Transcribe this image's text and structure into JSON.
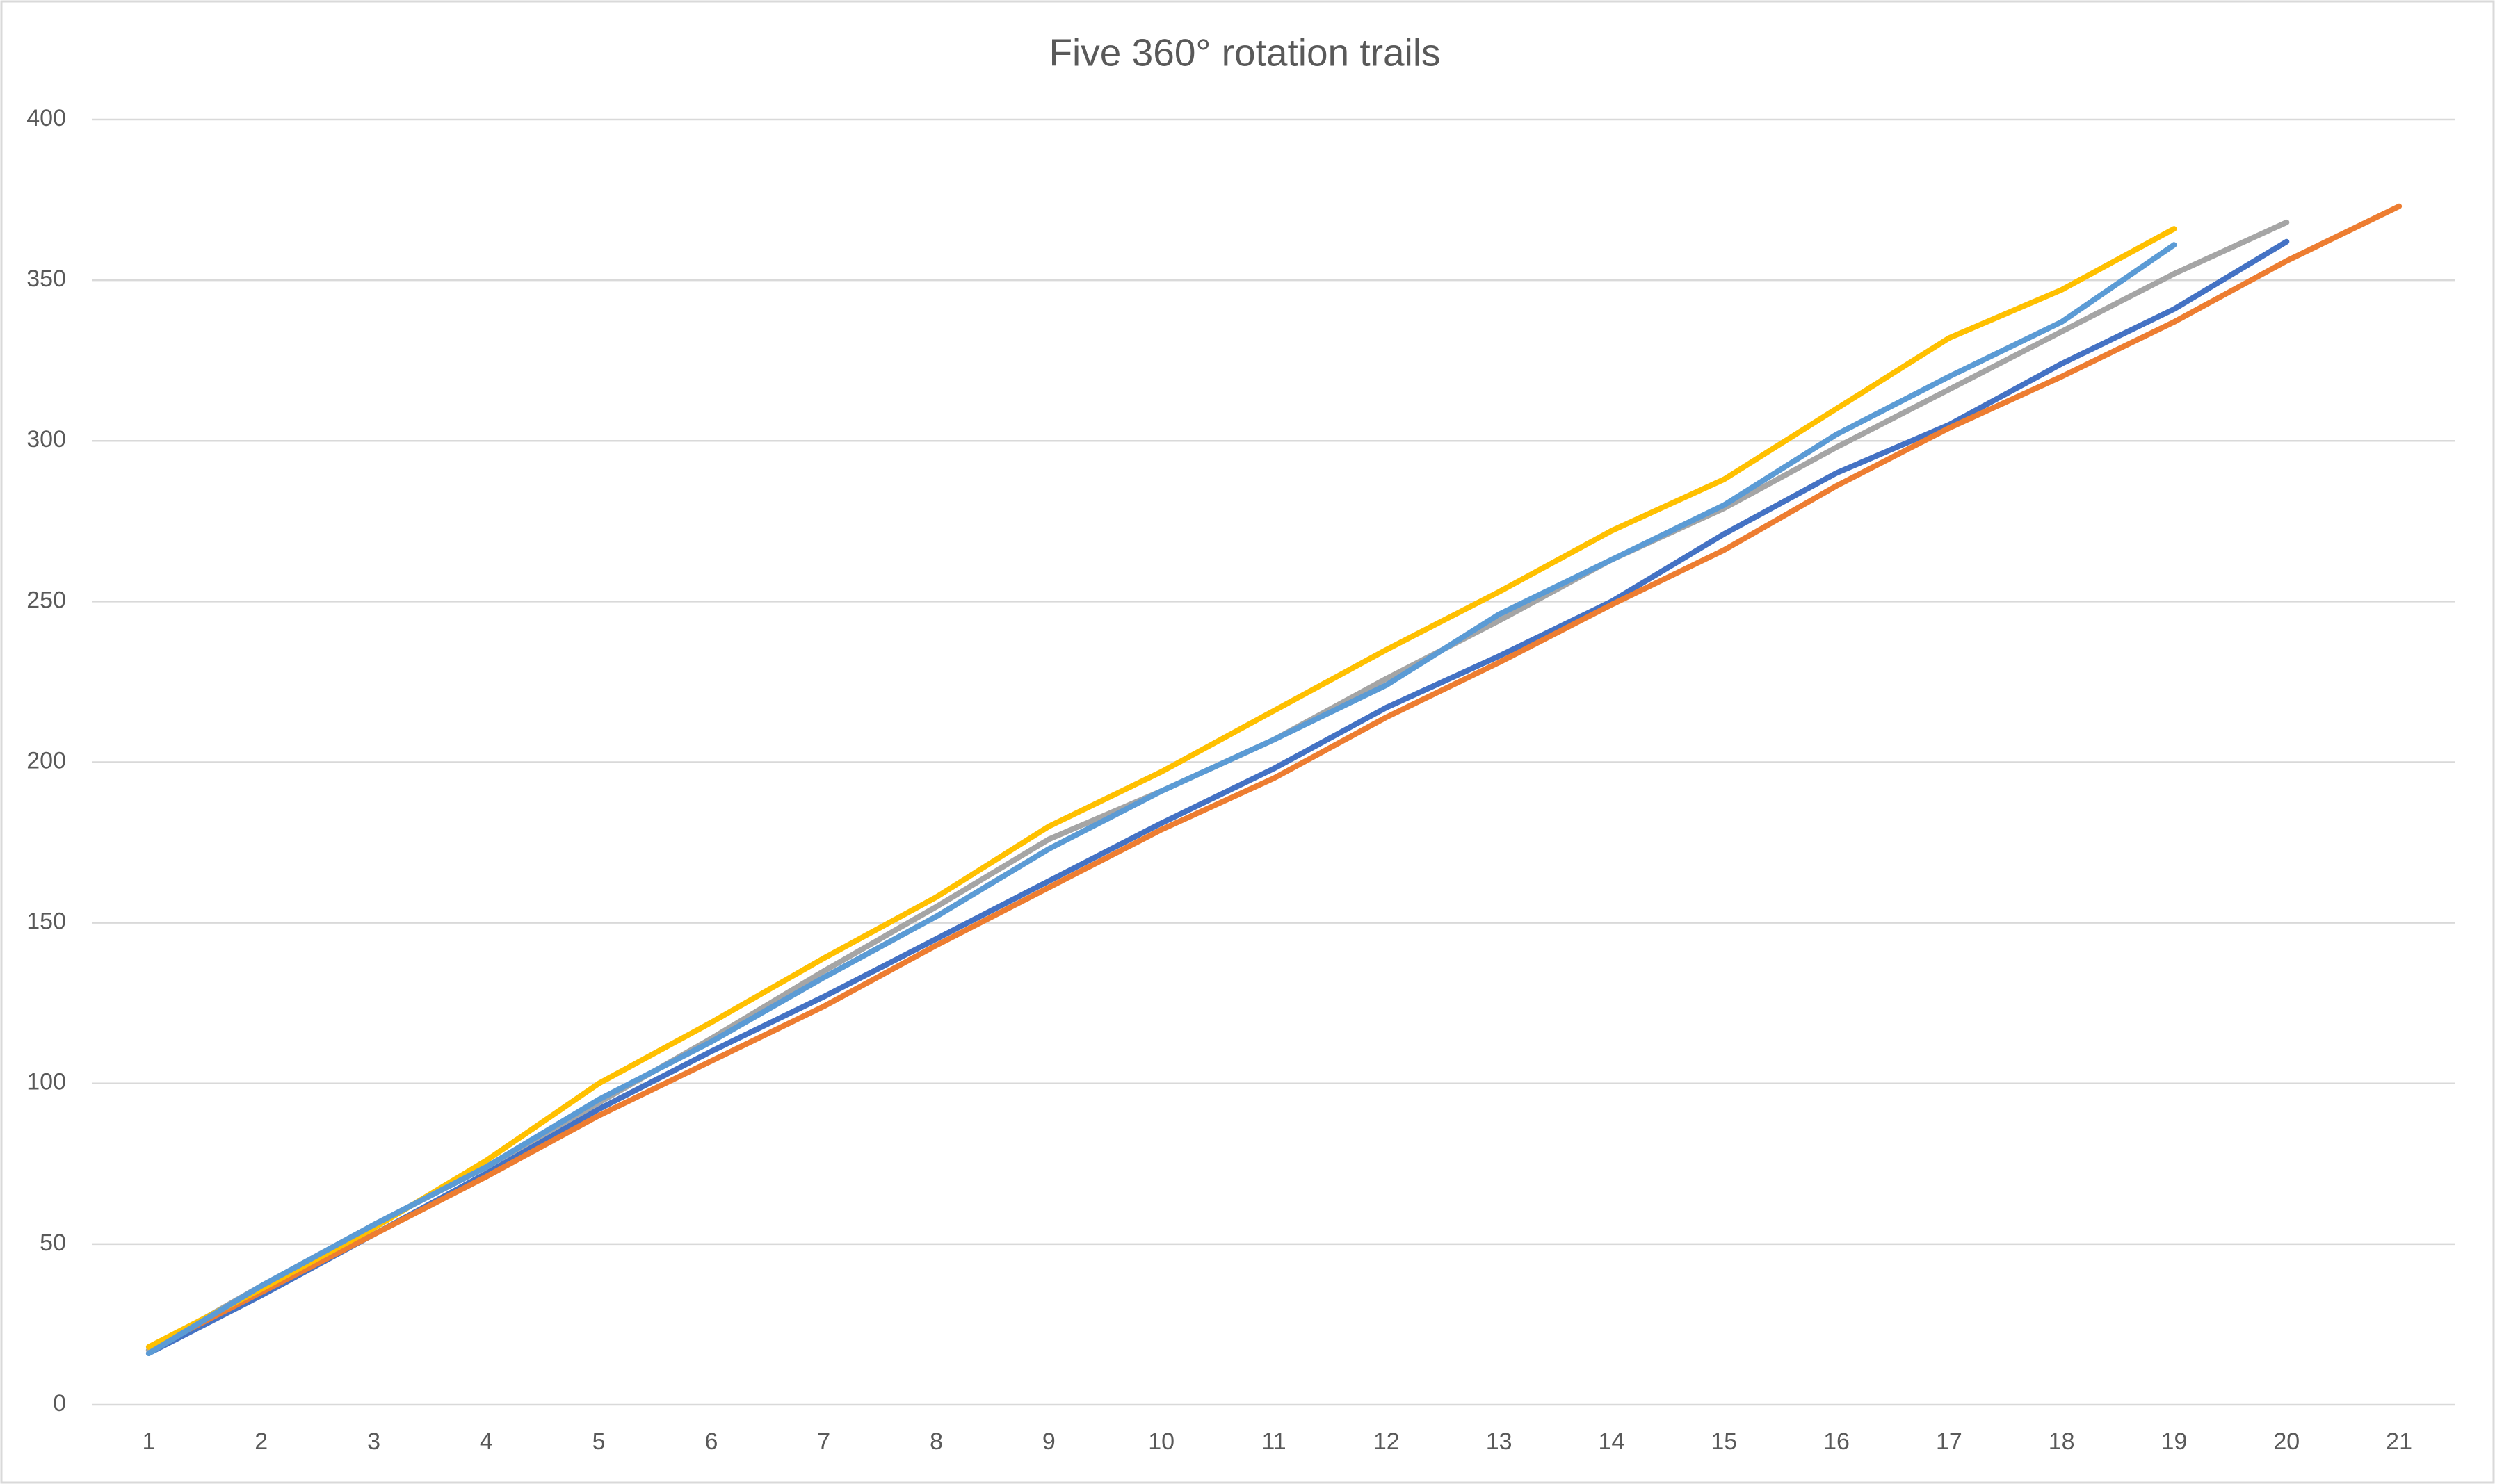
{
  "chart_data": {
    "type": "line",
    "title": "Five 360° rotation trails",
    "categories": [
      "1",
      "2",
      "3",
      "4",
      "5",
      "6",
      "7",
      "8",
      "9",
      "10",
      "11",
      "12",
      "13",
      "14",
      "15",
      "16",
      "17",
      "18",
      "19",
      "20",
      "21"
    ],
    "series": [
      {
        "color": "#4472c4",
        "values": [
          16,
          34,
          53,
          72,
          92,
          110,
          127,
          145,
          163,
          181,
          198,
          217,
          233,
          250,
          271,
          290,
          305,
          324,
          341,
          362,
          null
        ]
      },
      {
        "color": "#ed7d31",
        "values": [
          17,
          35,
          53,
          71,
          90,
          107,
          124,
          143,
          161,
          179,
          195,
          214,
          231,
          249,
          266,
          286,
          304,
          320,
          337,
          356,
          373
        ]
      },
      {
        "color": "#a5a5a5",
        "values": [
          17,
          37,
          56,
          74,
          94,
          114,
          135,
          155,
          176,
          191,
          207,
          226,
          244,
          263,
          279,
          298,
          316,
          334,
          352,
          368,
          null
        ]
      },
      {
        "color": "#ffc000",
        "values": [
          18,
          36,
          55,
          76,
          100,
          119,
          139,
          158,
          180,
          197,
          216,
          235,
          253,
          272,
          288,
          310,
          332,
          347,
          366,
          null,
          null
        ]
      },
      {
        "color": "#5b9bd5",
        "values": [
          16,
          37,
          56,
          74,
          95,
          113,
          133,
          152,
          173,
          191,
          207,
          224,
          246,
          263,
          280,
          302,
          320,
          337,
          361,
          null,
          null
        ]
      }
    ],
    "ylim": [
      0,
      400
    ],
    "yticks": [
      0,
      50,
      100,
      150,
      200,
      250,
      300,
      350,
      400
    ],
    "grid": true
  }
}
